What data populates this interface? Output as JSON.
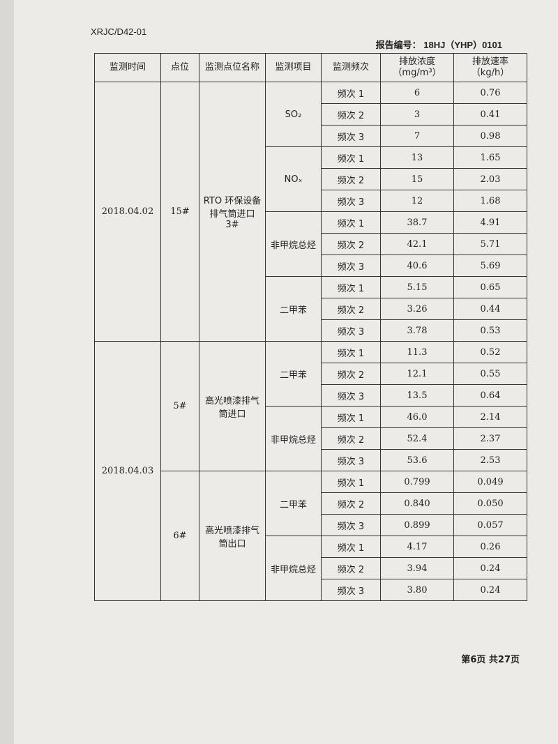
{
  "header": {
    "code": "XRJC/D42-01",
    "report_no_label": "报告编号：",
    "report_no": "18HJ（YHP）0101"
  },
  "table": {
    "columns": [
      [
        "监测时间"
      ],
      [
        "点位"
      ],
      [
        "监测点位名称"
      ],
      [
        "监测项目"
      ],
      [
        "监测频次"
      ],
      [
        "排放浓度",
        "（mg/m³）"
      ],
      [
        "排放速率",
        "（kg/h）"
      ]
    ],
    "groups": [
      {
        "date": "2018.04.02",
        "points": [
          {
            "point": "15#",
            "name": "RTO 环保设备排气筒进口 3#",
            "items": [
              {
                "item": "SO₂",
                "rows": [
                  [
                    "频次 1",
                    "6",
                    "0.76"
                  ],
                  [
                    "频次 2",
                    "3",
                    "0.41"
                  ],
                  [
                    "频次 3",
                    "7",
                    "0.98"
                  ]
                ]
              },
              {
                "item": "NOₓ",
                "rows": [
                  [
                    "频次 1",
                    "13",
                    "1.65"
                  ],
                  [
                    "频次 2",
                    "15",
                    "2.03"
                  ],
                  [
                    "频次 3",
                    "12",
                    "1.68"
                  ]
                ]
              },
              {
                "item": "非甲烷总烃",
                "rows": [
                  [
                    "频次 1",
                    "38.7",
                    "4.91"
                  ],
                  [
                    "频次 2",
                    "42.1",
                    "5.71"
                  ],
                  [
                    "频次 3",
                    "40.6",
                    "5.69"
                  ]
                ]
              },
              {
                "item": "二甲苯",
                "rows": [
                  [
                    "频次 1",
                    "5.15",
                    "0.65"
                  ],
                  [
                    "频次 2",
                    "3.26",
                    "0.44"
                  ],
                  [
                    "频次 3",
                    "3.78",
                    "0.53"
                  ]
                ]
              }
            ]
          }
        ]
      },
      {
        "date": "2018.04.03",
        "points": [
          {
            "point": "5#",
            "name": "高光喷漆排气筒进口",
            "items": [
              {
                "item": "二甲苯",
                "rows": [
                  [
                    "频次 1",
                    "11.3",
                    "0.52"
                  ],
                  [
                    "频次 2",
                    "12.1",
                    "0.55"
                  ],
                  [
                    "频次 3",
                    "13.5",
                    "0.64"
                  ]
                ]
              },
              {
                "item": "非甲烷总烃",
                "rows": [
                  [
                    "频次 1",
                    "46.0",
                    "2.14"
                  ],
                  [
                    "频次 2",
                    "52.4",
                    "2.37"
                  ],
                  [
                    "频次 3",
                    "53.6",
                    "2.53"
                  ]
                ]
              }
            ]
          },
          {
            "point": "6#",
            "name": "高光喷漆排气筒出口",
            "items": [
              {
                "item": "二甲苯",
                "rows": [
                  [
                    "频次 1",
                    "0.799",
                    "0.049"
                  ],
                  [
                    "频次 2",
                    "0.840",
                    "0.050"
                  ],
                  [
                    "频次 3",
                    "0.899",
                    "0.057"
                  ]
                ]
              },
              {
                "item": "非甲烷总烃",
                "rows": [
                  [
                    "频次 1",
                    "4.17",
                    "0.26"
                  ],
                  [
                    "频次 2",
                    "3.94",
                    "0.24"
                  ],
                  [
                    "频次 3",
                    "3.80",
                    "0.24"
                  ]
                ]
              }
            ]
          }
        ]
      }
    ]
  },
  "footer": {
    "page": "第6页 共27页"
  }
}
